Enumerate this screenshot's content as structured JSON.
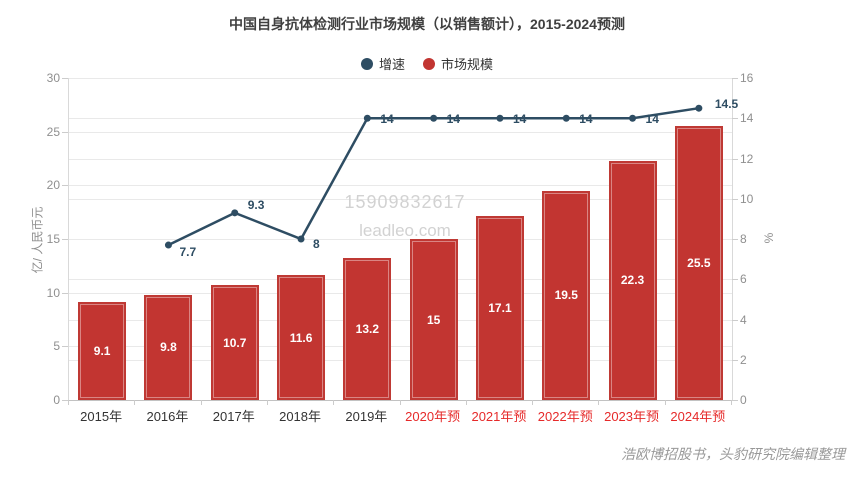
{
  "title": "中国自身抗体检测行业市场规模（以销售额计），2015-2024预测",
  "legend": [
    {
      "label": "增速",
      "color": "#2e4d63"
    },
    {
      "label": "市场规模",
      "color": "#c23531"
    }
  ],
  "watermark": {
    "line1": "15909832617",
    "line2": "leadleo.com"
  },
  "footer": "浩欧博招股书，头豹研究院编辑整理",
  "chart_data": {
    "type": "bar+line",
    "categories": [
      "2015年",
      "2016年",
      "2017年",
      "2018年",
      "2019年",
      "2020年预",
      "2021年预",
      "2022年预",
      "2023年预",
      "2024年预"
    ],
    "series": [
      {
        "name": "市场规模",
        "type": "bar",
        "axis": "left",
        "color": "#c23531",
        "values": [
          9.1,
          9.8,
          10.7,
          11.6,
          13.2,
          15,
          17.1,
          19.5,
          22.3,
          25.5
        ]
      },
      {
        "name": "增速",
        "type": "line",
        "axis": "right",
        "color": "#2e4d63",
        "values": [
          null,
          7.7,
          9.3,
          8,
          14,
          14,
          14,
          14,
          14,
          14.5
        ]
      }
    ],
    "left_axis": {
      "name": "亿/ 人民币元",
      "min": 0,
      "max": 30,
      "step": 5
    },
    "right_axis": {
      "name": "%",
      "min": 0,
      "max": 16,
      "step": 2
    },
    "grid": true,
    "legend_position": "top-center",
    "forecast_from_index": 5,
    "forecast_label_color": "#e62a2a",
    "category_label_color": "#333333"
  }
}
